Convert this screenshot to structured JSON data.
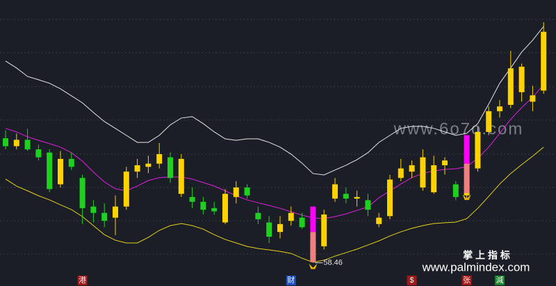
{
  "chart_data": {
    "type": "candlestick",
    "ylim": [
      57,
      75
    ],
    "up_color": "#ffd200",
    "down_color": "#1fd11f",
    "open": [
      66.3,
      65.8,
      66.2,
      65.6,
      65.4,
      63.4,
      65.0,
      63.8,
      62.0,
      61.6,
      61.3,
      62.0,
      64.2,
      64.5,
      64.7,
      65.1,
      62.8,
      62.6,
      62.3,
      61.9,
      61.0,
      62.6,
      63.2,
      61.6,
      61.0,
      60.4,
      61.1,
      61.3,
      59.9,
      59.5,
      62.5,
      62.8,
      62.5,
      62.4,
      60.9,
      61.4,
      63.8,
      64.2,
      63.2,
      62.9,
      64.6,
      63.4,
      62.7,
      64.4,
      66.7,
      68.0,
      68.4,
      69.2,
      68.6,
      69.3
    ],
    "high": [
      66.8,
      66.6,
      66.9,
      65.9,
      65.6,
      65.5,
      65.4,
      64.0,
      62.4,
      62.2,
      62.7,
      64.5,
      65.0,
      65.2,
      66.0,
      65.4,
      65.3,
      63.2,
      62.6,
      62.3,
      63.1,
      63.6,
      63.4,
      62.0,
      61.4,
      61.4,
      62.0,
      61.6,
      60.1,
      61.8,
      63.8,
      63.2,
      63.0,
      62.8,
      61.6,
      64.0,
      65.0,
      64.9,
      65.6,
      65.2,
      65.1,
      63.6,
      63.1,
      67.0,
      68.3,
      68.7,
      71.8,
      71.0,
      69.6,
      73.6
    ],
    "low": [
      65.6,
      65.6,
      65.5,
      64.9,
      62.9,
      63.2,
      64.3,
      60.9,
      61.0,
      60.7,
      60.2,
      61.8,
      63.8,
      64.1,
      64.4,
      63.5,
      62.6,
      61.9,
      61.5,
      61.5,
      60.9,
      62.2,
      62.5,
      60.9,
      59.7,
      60.0,
      60.8,
      60.6,
      58.46,
      59.3,
      62.3,
      62.2,
      62.0,
      61.4,
      60.7,
      61.2,
      63.6,
      63.8,
      63.0,
      62.8,
      64.0,
      62.4,
      62.5,
      64.2,
      66.5,
      67.6,
      68.2,
      68.6,
      68.0,
      69.1
    ],
    "close": [
      65.8,
      66.2,
      65.6,
      65.1,
      63.1,
      65.0,
      64.5,
      61.9,
      61.6,
      61.1,
      62.0,
      64.2,
      64.6,
      64.7,
      65.3,
      63.8,
      65.0,
      62.3,
      61.8,
      61.7,
      62.8,
      63.2,
      62.7,
      61.2,
      60.1,
      60.9,
      61.6,
      60.7,
      58.6,
      61.5,
      63.4,
      62.5,
      62.6,
      61.8,
      61.3,
      63.7,
      64.4,
      64.6,
      65.1,
      64.6,
      64.9,
      62.6,
      62.9,
      66.7,
      68.0,
      68.3,
      70.7,
      70.8,
      69.0,
      73.0
    ],
    "series": [
      {
        "color": "#e8e8e8",
        "values": [
          71.16,
          70.72,
          70.19,
          69.98,
          69.76,
          69.41,
          68.97,
          68.53,
          67.92,
          67.35,
          66.92,
          66.48,
          66.04,
          66.04,
          66.48,
          67.14,
          67.57,
          67.66,
          67.22,
          66.7,
          66.26,
          66.17,
          66.26,
          66.26,
          66.04,
          65.74,
          65.3,
          64.73,
          64.08,
          63.99,
          64.3,
          64.6,
          64.95,
          65.39,
          66.04,
          66.48,
          66.92,
          67.05,
          67.05,
          66.92,
          66.7,
          66.48,
          66.61,
          67.22,
          68.45,
          69.76,
          70.72,
          71.72,
          72.47,
          73.34
        ]
      },
      {
        "color": "#e020e0",
        "values": [
          66.92,
          66.7,
          66.39,
          66.17,
          65.96,
          65.74,
          65.39,
          64.86,
          64.17,
          63.55,
          63.12,
          62.99,
          63.29,
          63.64,
          63.82,
          63.86,
          63.86,
          63.73,
          63.51,
          63.29,
          62.99,
          62.68,
          62.42,
          62.24,
          62.07,
          61.89,
          61.67,
          61.46,
          61.28,
          61.24,
          61.37,
          61.54,
          61.76,
          61.98,
          62.55,
          62.99,
          63.42,
          63.82,
          64.08,
          64.25,
          64.34,
          64.38,
          64.51,
          65.04,
          65.74,
          66.61,
          67.49,
          68.23,
          68.88,
          69.67
        ]
      },
      {
        "color": "#e6d21a",
        "values": [
          63.73,
          63.29,
          62.99,
          62.68,
          62.42,
          62.11,
          61.81,
          61.37,
          60.8,
          60.23,
          59.88,
          59.71,
          59.71,
          60.06,
          60.5,
          60.8,
          60.93,
          60.8,
          60.58,
          60.23,
          59.93,
          59.71,
          59.49,
          59.36,
          59.27,
          59.18,
          59.05,
          58.75,
          58.49,
          58.62,
          58.88,
          59.1,
          59.32,
          59.58,
          59.84,
          60.15,
          60.41,
          60.63,
          60.8,
          60.93,
          60.98,
          61.02,
          61.24,
          61.89,
          62.64,
          63.42,
          64.08,
          64.64,
          65.17,
          65.74
        ]
      }
    ],
    "signals": [
      {
        "index": 28,
        "top": 62.0,
        "mid": 60.4,
        "bottom": 58.5,
        "top_color": "#ff00ff",
        "bottom_color": "#f08080"
      },
      {
        "index": 42,
        "top": 66.5,
        "mid": 64.7,
        "bottom": 62.85,
        "top_color": "#ff00ff",
        "bottom_color": "#f08080"
      }
    ],
    "categories": [
      null,
      null,
      null,
      null,
      null,
      null,
      null,
      "港",
      null,
      null,
      null,
      null,
      null,
      null,
      null,
      null,
      null,
      null,
      null,
      null,
      null,
      null,
      null,
      null,
      null,
      null,
      "财",
      null,
      null,
      null,
      null,
      null,
      null,
      null,
      null,
      null,
      null,
      "$",
      null,
      null,
      null,
      null,
      "张",
      null,
      null,
      "減",
      null,
      null,
      null,
      null
    ],
    "category_colors": [
      null,
      null,
      null,
      null,
      null,
      null,
      null,
      "#a01818",
      null,
      null,
      null,
      null,
      null,
      null,
      null,
      null,
      null,
      null,
      null,
      null,
      null,
      null,
      null,
      null,
      null,
      null,
      "#1d4fc0",
      null,
      null,
      null,
      null,
      null,
      null,
      null,
      null,
      null,
      null,
      "#a01818",
      null,
      null,
      null,
      null,
      "#a01818",
      null,
      null,
      "#17802a",
      null,
      null,
      null,
      null
    ],
    "watermarks": [
      "www.6o7o.com",
      "掌 上 指 标",
      "www.palmindex.com"
    ]
  }
}
